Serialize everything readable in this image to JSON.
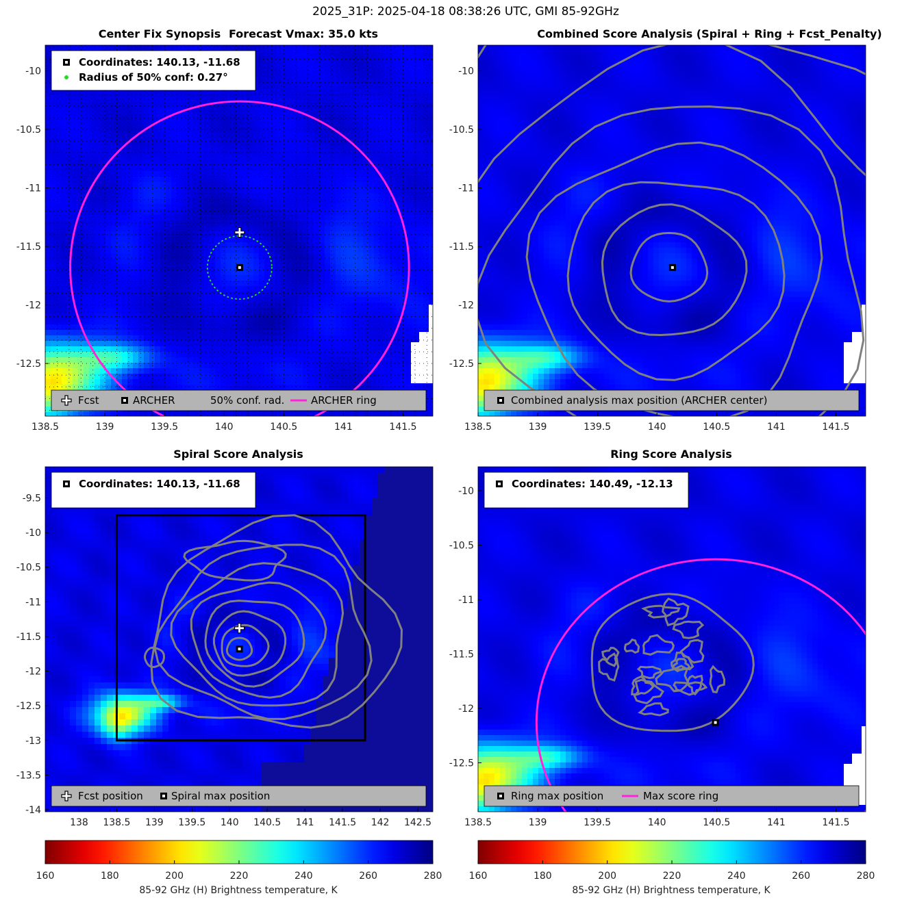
{
  "suptitle": "2025_31P: 2025-04-18 08:38:26 UTC, GMI 85-92GHz",
  "colors": {
    "ring": "#ff22dd",
    "contour": "#808080",
    "conf": "#22dd22",
    "legend_bg": "#b4b4b4"
  },
  "panels": [
    {
      "title_left": "Center Fix Synopsis",
      "title_right": "Forecast Vmax: 35.0 kts",
      "info_lines": [
        "Coordinates: 140.13, -11.68",
        "Radius of 50% conf: 0.27°"
      ],
      "legend": [
        "Fcst",
        "ARCHER",
        "50% conf. rad.",
        "ARCHER ring"
      ]
    },
    {
      "title": "Combined Score Analysis (Spiral + Ring + Fcst_Penalty)",
      "legend": [
        "Combined analysis max position (ARCHER center)"
      ]
    },
    {
      "title": "Spiral Score Analysis",
      "info_lines": [
        "Coordinates: 140.13, -11.68"
      ],
      "legend": [
        "Fcst position",
        "Spiral max position"
      ]
    },
    {
      "title": "Ring Score Analysis",
      "info_lines": [
        "Coordinates: 140.49, -12.13"
      ],
      "legend": [
        "Ring max position",
        "Max score ring"
      ]
    }
  ],
  "chart_data": [
    {
      "type": "heatmap",
      "title": "Center Fix Synopsis",
      "xlim": [
        138.5,
        141.75
      ],
      "ylim": [
        -12.95,
        -9.78
      ],
      "xticks": [
        "138.5",
        "139",
        "139.5",
        "140",
        "140.5",
        "141",
        "141.5"
      ],
      "yticks": [
        "-10",
        "-10.5",
        "-11",
        "-11.5",
        "-12",
        "-12.5"
      ],
      "center": [
        140.13,
        -11.68
      ],
      "forecast": [
        140.13,
        -11.38
      ],
      "confidence_radius_deg": 0.27,
      "ring": {
        "center": [
          140.13,
          -11.68
        ],
        "radius_deg": 1.42
      }
    },
    {
      "type": "heatmap",
      "title": "Combined Score Analysis (Spiral + Ring + Fcst_Penalty)",
      "xlim": [
        138.5,
        141.75
      ],
      "ylim": [
        -12.95,
        -9.78
      ],
      "xticks": [
        "138.5",
        "139",
        "139.5",
        "140",
        "140.5",
        "141",
        "141.5"
      ],
      "yticks": [
        "-10",
        "-10.5",
        "-11",
        "-11.5",
        "-12",
        "-12.5"
      ],
      "max_position": [
        140.13,
        -11.68
      ]
    },
    {
      "type": "heatmap",
      "title": "Spiral Score Analysis",
      "xlim": [
        137.55,
        142.7
      ],
      "ylim": [
        -14.03,
        -9.05
      ],
      "xticks": [
        "138",
        "138.5",
        "139",
        "139.5",
        "140",
        "140.5",
        "141",
        "141.5",
        "142",
        "142.5"
      ],
      "yticks": [
        "-9.5",
        "-10",
        "-10.5",
        "-11",
        "-11.5",
        "-12",
        "-12.5",
        "-13",
        "-13.5",
        "-14"
      ],
      "max_position": [
        140.13,
        -11.68
      ],
      "forecast": [
        140.13,
        -11.38
      ],
      "search_box": {
        "x": [
          138.5,
          141.8
        ],
        "y": [
          -13.0,
          -9.75
        ]
      }
    },
    {
      "type": "heatmap",
      "title": "Ring Score Analysis",
      "xlim": [
        138.5,
        141.75
      ],
      "ylim": [
        -12.95,
        -9.78
      ],
      "xticks": [
        "138.5",
        "139",
        "139.5",
        "140",
        "140.5",
        "141",
        "141.5"
      ],
      "yticks": [
        "-10",
        "-10.5",
        "-11",
        "-11.5",
        "-12",
        "-12.5"
      ],
      "max_position": [
        140.49,
        -12.13
      ],
      "ring": {
        "center": [
          140.49,
          -12.13
        ],
        "radius_deg": 1.5
      }
    }
  ],
  "colorbar": {
    "min": 160,
    "max": 280,
    "ticks": [
      "160",
      "180",
      "200",
      "220",
      "240",
      "260",
      "280"
    ],
    "label": "85-92 GHz (H) Brightness temperature, K"
  }
}
